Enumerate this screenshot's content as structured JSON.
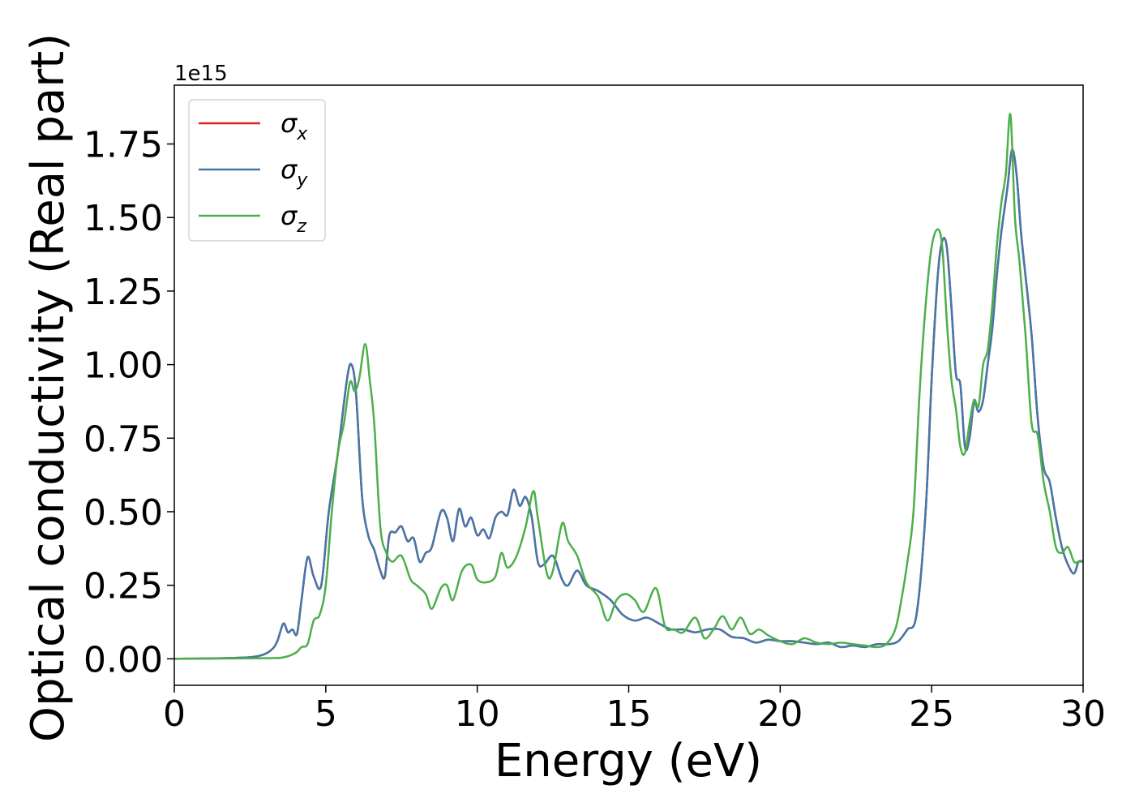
{
  "chart_data": {
    "type": "line",
    "xlabel": "Energy (eV)",
    "ylabel": "Optical conductivity (Real part)",
    "offset_text": "1e15",
    "xlim": [
      0,
      30
    ],
    "ylim": [
      -0.09,
      1.95
    ],
    "xticks": [
      0,
      5,
      10,
      15,
      20,
      25,
      30
    ],
    "xtick_labels": [
      "0",
      "5",
      "10",
      "15",
      "20",
      "25",
      "30"
    ],
    "yticks": [
      0,
      0.25,
      0.5,
      0.75,
      1.0,
      1.25,
      1.5,
      1.75
    ],
    "ytick_labels": [
      "0.00",
      "0.25",
      "0.50",
      "0.75",
      "1.00",
      "1.25",
      "1.50",
      "1.75"
    ],
    "y_scale_factor": "1e15",
    "grid": false,
    "legend_position": "top-left",
    "legend": [
      {
        "symbol": "σ",
        "subscript": "x",
        "color": "#d62728"
      },
      {
        "symbol": "σ",
        "subscript": "y",
        "color": "#4477aa"
      },
      {
        "symbol": "σ",
        "subscript": "z",
        "color": "#4daf4a"
      }
    ],
    "series": [
      {
        "color": "#d62728",
        "x": [
          0,
          2,
          2.8,
          3.2,
          3.4,
          3.6,
          3.75,
          3.9,
          4.05,
          4.2,
          4.4,
          4.6,
          4.85,
          5.1,
          5.4,
          5.7,
          5.85,
          6.0,
          6.2,
          6.4,
          6.6,
          6.8,
          6.95,
          7.1,
          7.3,
          7.5,
          7.7,
          7.9,
          8.1,
          8.3,
          8.5,
          8.8,
          9.0,
          9.2,
          9.4,
          9.6,
          9.8,
          10.0,
          10.2,
          10.4,
          10.6,
          10.8,
          11.0,
          11.2,
          11.4,
          11.6,
          11.8,
          12.0,
          12.2,
          12.5,
          12.8,
          13.0,
          13.3,
          13.6,
          14.0,
          14.4,
          14.8,
          15.2,
          15.6,
          16.0,
          16.4,
          16.8,
          17.2,
          17.6,
          18.0,
          18.4,
          18.8,
          19.2,
          19.6,
          20.0,
          20.4,
          20.8,
          21.2,
          21.6,
          22.0,
          22.4,
          22.8,
          23.2,
          23.6,
          23.9,
          24.2,
          24.5,
          24.8,
          25.0,
          25.2,
          25.35,
          25.5,
          25.65,
          25.8,
          25.95,
          26.1,
          26.25,
          26.4,
          26.55,
          26.7,
          26.85,
          27.0,
          27.15,
          27.3,
          27.5,
          27.65,
          27.8,
          27.95,
          28.1,
          28.3,
          28.5,
          28.7,
          28.9,
          29.1,
          29.3,
          29.5,
          29.7,
          29.85,
          30
        ],
        "y": [
          0,
          0.003,
          0.01,
          0.03,
          0.06,
          0.12,
          0.09,
          0.1,
          0.085,
          0.2,
          0.345,
          0.28,
          0.25,
          0.5,
          0.7,
          0.95,
          1.0,
          0.9,
          0.55,
          0.42,
          0.37,
          0.3,
          0.28,
          0.42,
          0.43,
          0.45,
          0.4,
          0.41,
          0.33,
          0.36,
          0.38,
          0.5,
          0.48,
          0.4,
          0.51,
          0.45,
          0.48,
          0.42,
          0.44,
          0.41,
          0.48,
          0.5,
          0.49,
          0.575,
          0.52,
          0.55,
          0.48,
          0.33,
          0.32,
          0.35,
          0.27,
          0.25,
          0.3,
          0.25,
          0.23,
          0.2,
          0.15,
          0.13,
          0.14,
          0.12,
          0.1,
          0.1,
          0.09,
          0.1,
          0.1,
          0.075,
          0.07,
          0.055,
          0.065,
          0.06,
          0.06,
          0.055,
          0.05,
          0.055,
          0.04,
          0.045,
          0.04,
          0.05,
          0.05,
          0.06,
          0.1,
          0.15,
          0.5,
          0.95,
          1.3,
          1.42,
          1.4,
          1.2,
          0.97,
          0.93,
          0.72,
          0.75,
          0.87,
          0.84,
          0.88,
          1.0,
          1.12,
          1.3,
          1.45,
          1.6,
          1.73,
          1.65,
          1.45,
          1.3,
          1.1,
          0.82,
          0.65,
          0.6,
          0.48,
          0.38,
          0.32,
          0.29,
          0.33,
          0.33
        ]
      },
      {
        "color": "#4477aa",
        "x": [
          0,
          2,
          2.8,
          3.2,
          3.4,
          3.6,
          3.75,
          3.9,
          4.05,
          4.2,
          4.4,
          4.6,
          4.85,
          5.1,
          5.4,
          5.7,
          5.85,
          6.0,
          6.2,
          6.4,
          6.6,
          6.8,
          6.95,
          7.1,
          7.3,
          7.5,
          7.7,
          7.9,
          8.1,
          8.3,
          8.5,
          8.8,
          9.0,
          9.2,
          9.4,
          9.6,
          9.8,
          10.0,
          10.2,
          10.4,
          10.6,
          10.8,
          11.0,
          11.2,
          11.4,
          11.6,
          11.8,
          12.0,
          12.2,
          12.5,
          12.8,
          13.0,
          13.3,
          13.6,
          14.0,
          14.4,
          14.8,
          15.2,
          15.6,
          16.0,
          16.4,
          16.8,
          17.2,
          17.6,
          18.0,
          18.4,
          18.8,
          19.2,
          19.6,
          20.0,
          20.4,
          20.8,
          21.2,
          21.6,
          22.0,
          22.4,
          22.8,
          23.2,
          23.6,
          23.9,
          24.2,
          24.5,
          24.8,
          25.0,
          25.2,
          25.35,
          25.5,
          25.65,
          25.8,
          25.95,
          26.1,
          26.25,
          26.4,
          26.55,
          26.7,
          26.85,
          27.0,
          27.15,
          27.3,
          27.5,
          27.65,
          27.8,
          27.95,
          28.1,
          28.3,
          28.5,
          28.7,
          28.9,
          29.1,
          29.3,
          29.5,
          29.7,
          29.85,
          30
        ],
        "y": [
          0,
          0.003,
          0.01,
          0.03,
          0.06,
          0.12,
          0.09,
          0.1,
          0.085,
          0.2,
          0.345,
          0.28,
          0.25,
          0.5,
          0.7,
          0.95,
          1.0,
          0.9,
          0.55,
          0.42,
          0.37,
          0.3,
          0.28,
          0.42,
          0.43,
          0.45,
          0.4,
          0.41,
          0.33,
          0.36,
          0.38,
          0.5,
          0.48,
          0.4,
          0.51,
          0.45,
          0.48,
          0.42,
          0.44,
          0.41,
          0.48,
          0.5,
          0.49,
          0.575,
          0.52,
          0.55,
          0.48,
          0.33,
          0.32,
          0.35,
          0.27,
          0.25,
          0.3,
          0.25,
          0.23,
          0.2,
          0.15,
          0.13,
          0.14,
          0.12,
          0.1,
          0.1,
          0.09,
          0.1,
          0.1,
          0.075,
          0.07,
          0.055,
          0.065,
          0.06,
          0.06,
          0.055,
          0.05,
          0.055,
          0.04,
          0.045,
          0.04,
          0.05,
          0.05,
          0.06,
          0.1,
          0.15,
          0.5,
          0.95,
          1.3,
          1.42,
          1.4,
          1.2,
          0.97,
          0.93,
          0.72,
          0.75,
          0.87,
          0.84,
          0.88,
          1.0,
          1.12,
          1.3,
          1.45,
          1.6,
          1.73,
          1.65,
          1.45,
          1.3,
          1.1,
          0.82,
          0.65,
          0.6,
          0.48,
          0.38,
          0.32,
          0.29,
          0.33,
          0.33
        ]
      },
      {
        "color": "#4daf4a",
        "x": [
          0,
          3,
          3.6,
          4.0,
          4.2,
          4.4,
          4.6,
          4.8,
          5.0,
          5.2,
          5.4,
          5.6,
          5.8,
          5.95,
          6.1,
          6.3,
          6.45,
          6.6,
          6.8,
          7.0,
          7.2,
          7.5,
          7.8,
          8.0,
          8.3,
          8.5,
          8.8,
          9.0,
          9.2,
          9.5,
          9.8,
          10.0,
          10.3,
          10.6,
          10.8,
          11.0,
          11.3,
          11.6,
          11.85,
          12.0,
          12.3,
          12.5,
          12.8,
          13.0,
          13.3,
          13.6,
          14.0,
          14.3,
          14.6,
          14.9,
          15.2,
          15.5,
          15.9,
          16.2,
          16.5,
          16.8,
          17.2,
          17.5,
          17.8,
          18.1,
          18.4,
          18.7,
          19.0,
          19.3,
          19.6,
          20.0,
          20.4,
          20.8,
          21.2,
          21.6,
          22.0,
          22.4,
          22.8,
          23.2,
          23.5,
          23.8,
          24.0,
          24.2,
          24.4,
          24.6,
          24.8,
          25.0,
          25.2,
          25.35,
          25.5,
          25.65,
          25.8,
          25.95,
          26.1,
          26.25,
          26.4,
          26.55,
          26.7,
          26.85,
          27.0,
          27.15,
          27.3,
          27.45,
          27.6,
          27.75,
          27.9,
          28.1,
          28.3,
          28.5,
          28.7,
          28.9,
          29.1,
          29.3,
          29.5,
          29.7,
          29.85,
          30
        ],
        "y": [
          0,
          0.002,
          0.005,
          0.02,
          0.04,
          0.05,
          0.13,
          0.15,
          0.25,
          0.5,
          0.7,
          0.8,
          0.94,
          0.91,
          0.95,
          1.07,
          0.95,
          0.8,
          0.45,
          0.36,
          0.33,
          0.35,
          0.27,
          0.25,
          0.22,
          0.17,
          0.24,
          0.25,
          0.2,
          0.3,
          0.32,
          0.27,
          0.26,
          0.28,
          0.36,
          0.31,
          0.35,
          0.45,
          0.57,
          0.48,
          0.29,
          0.3,
          0.46,
          0.4,
          0.35,
          0.26,
          0.21,
          0.13,
          0.2,
          0.22,
          0.2,
          0.16,
          0.24,
          0.11,
          0.1,
          0.09,
          0.14,
          0.07,
          0.1,
          0.145,
          0.1,
          0.14,
          0.085,
          0.1,
          0.08,
          0.06,
          0.05,
          0.07,
          0.055,
          0.05,
          0.055,
          0.05,
          0.045,
          0.04,
          0.05,
          0.1,
          0.2,
          0.33,
          0.5,
          0.9,
          1.2,
          1.4,
          1.46,
          1.4,
          1.15,
          0.95,
          0.85,
          0.72,
          0.7,
          0.8,
          0.88,
          0.86,
          1.0,
          1.05,
          1.2,
          1.4,
          1.55,
          1.65,
          1.85,
          1.5,
          1.35,
          1.1,
          0.8,
          0.76,
          0.6,
          0.5,
          0.38,
          0.36,
          0.38,
          0.33,
          0.33,
          0.33
        ]
      }
    ]
  }
}
